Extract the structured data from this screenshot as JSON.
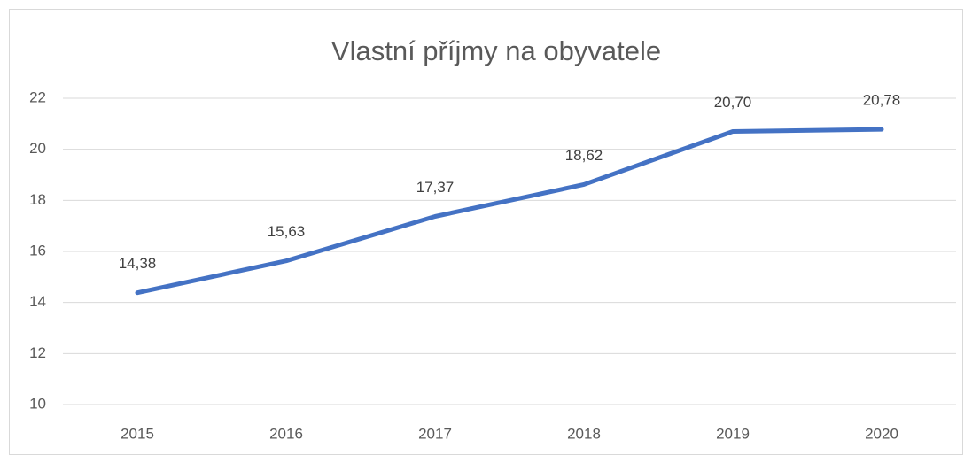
{
  "chart_data": {
    "type": "line",
    "title": "Vlastní příjmy na obyvatele",
    "categories": [
      "2015",
      "2016",
      "2017",
      "2018",
      "2019",
      "2020"
    ],
    "values": [
      14.38,
      15.63,
      17.37,
      18.62,
      20.7,
      20.78
    ],
    "value_labels": [
      "14,38",
      "15,63",
      "17,37",
      "18,62",
      "20,70",
      "20,78"
    ],
    "color": "#4472c4",
    "ylim": [
      10,
      22
    ],
    "yticks": [
      10,
      12,
      14,
      16,
      18,
      20,
      22
    ],
    "grid": true
  }
}
